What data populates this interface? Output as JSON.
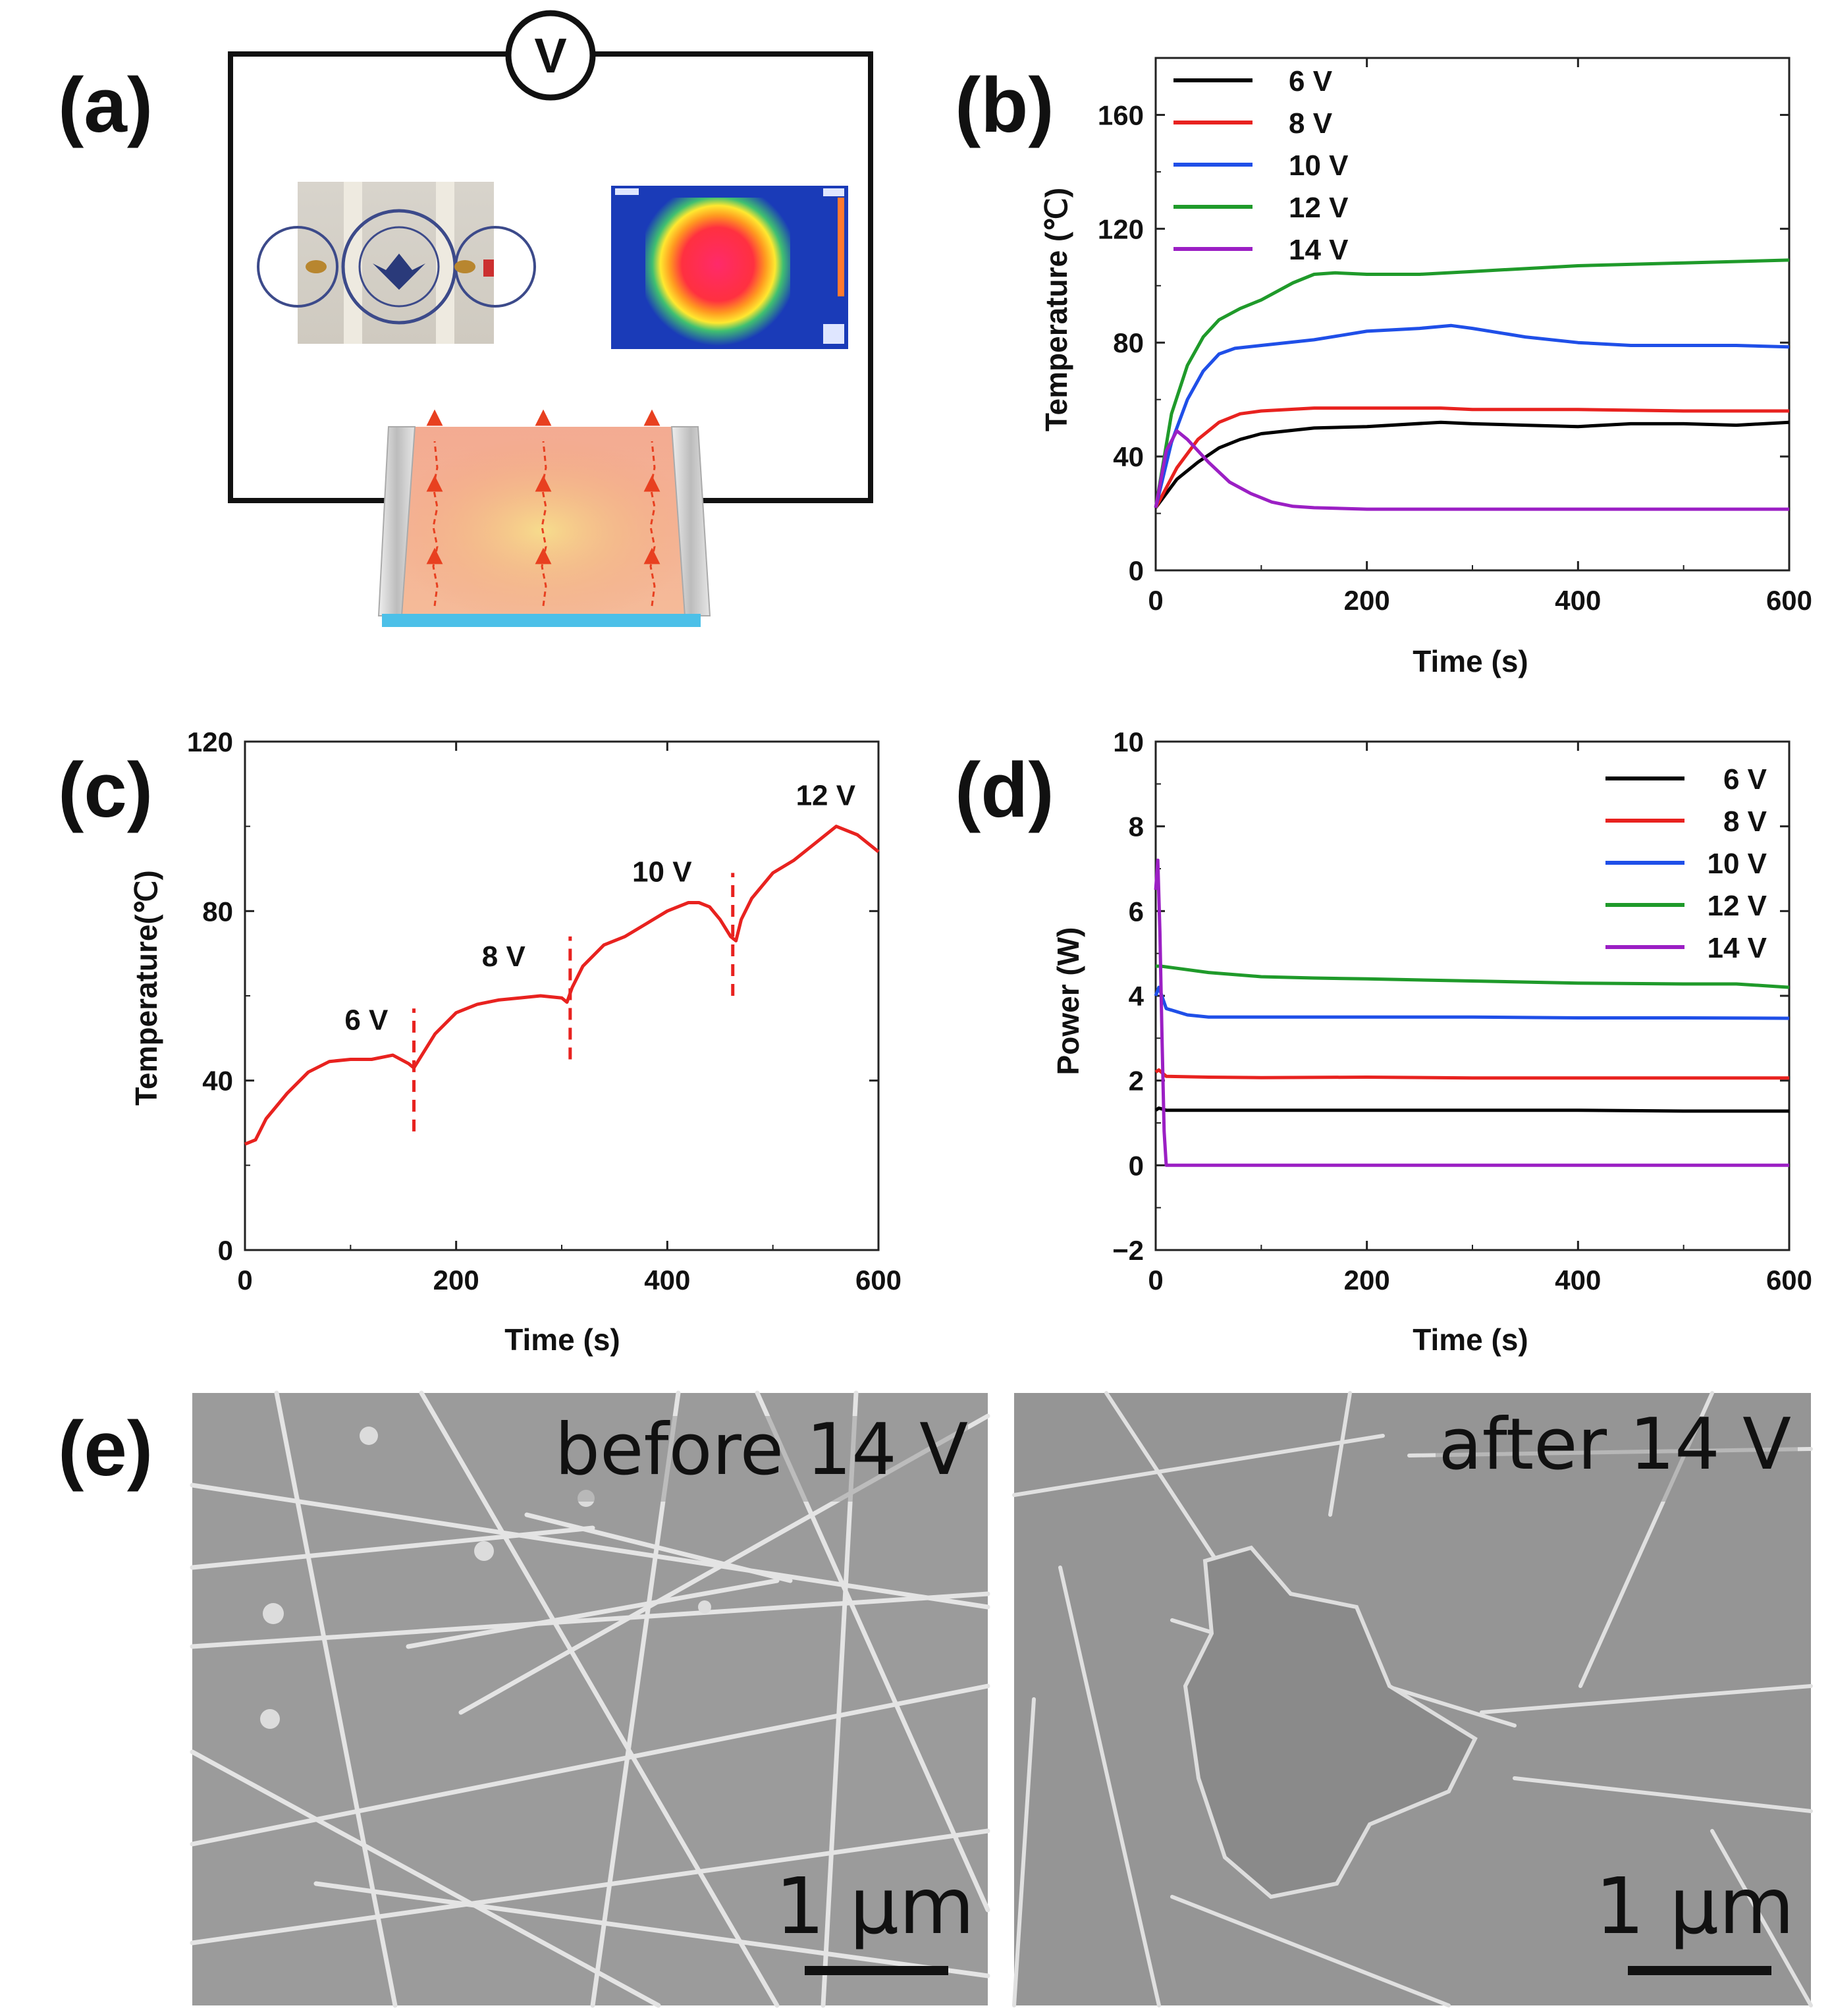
{
  "panels": {
    "a": {
      "label": "(a)",
      "voltmeter": "V"
    },
    "b": {
      "label": "(b)"
    },
    "c": {
      "label": "(c)"
    },
    "d": {
      "label": "(d)"
    },
    "e": {
      "label": "(e)",
      "left_caption": "before 14 V",
      "right_caption": "after 14 V",
      "scale_label": "1 μm"
    }
  },
  "colors": {
    "6 V": "#000000",
    "8 V": "#e8221f",
    "10 V": "#1f4fe8",
    "12 V": "#1f9a2a",
    "14 V": "#9b1fc4"
  },
  "chart_data": [
    {
      "id": "b",
      "type": "line",
      "xlabel": "Time (s)",
      "ylabel": "Temperature (℃)",
      "xlim": [
        0,
        600
      ],
      "ylim": [
        0,
        180
      ],
      "xticks": [
        0,
        200,
        400,
        600
      ],
      "yticks": [
        0,
        40,
        80,
        120,
        160
      ],
      "legend_position": "top-left",
      "series": [
        {
          "name": "6 V",
          "x": [
            0,
            20,
            40,
            60,
            80,
            100,
            150,
            200,
            270,
            300,
            350,
            400,
            450,
            500,
            550,
            600
          ],
          "y": [
            22,
            32,
            38,
            43,
            46,
            48,
            50,
            50.5,
            52,
            51.5,
            51,
            50.5,
            51.5,
            51.5,
            51,
            52
          ]
        },
        {
          "name": "8 V",
          "x": [
            0,
            20,
            40,
            60,
            80,
            100,
            150,
            200,
            270,
            300,
            400,
            500,
            600
          ],
          "y": [
            22,
            36,
            46,
            52,
            55,
            56,
            57,
            57,
            57,
            56.5,
            56.5,
            56,
            56
          ]
        },
        {
          "name": "10 V",
          "x": [
            0,
            15,
            30,
            45,
            60,
            75,
            100,
            150,
            200,
            250,
            280,
            300,
            350,
            400,
            450,
            500,
            550,
            600
          ],
          "y": [
            22,
            45,
            60,
            70,
            76,
            78,
            79,
            81,
            84,
            85,
            86,
            85,
            82,
            80,
            79,
            79,
            79,
            78.5
          ]
        },
        {
          "name": "12 V",
          "x": [
            0,
            15,
            30,
            45,
            60,
            80,
            100,
            130,
            150,
            170,
            200,
            250,
            300,
            400,
            500,
            600
          ],
          "y": [
            22,
            55,
            72,
            82,
            88,
            92,
            95,
            101,
            104,
            104.5,
            104,
            104,
            105,
            107,
            108,
            109
          ]
        },
        {
          "name": "14 V",
          "x": [
            0,
            10,
            20,
            30,
            50,
            70,
            90,
            110,
            130,
            150,
            200,
            300,
            400,
            500,
            600
          ],
          "y": [
            22,
            42,
            49,
            46,
            38,
            31,
            27,
            24,
            22.5,
            22,
            21.5,
            21.5,
            21.5,
            21.5,
            21.5
          ]
        }
      ]
    },
    {
      "id": "c",
      "type": "line",
      "xlabel": "Time (s)",
      "ylabel": "Temperature(℃)",
      "xlim": [
        0,
        600
      ],
      "ylim": [
        0,
        120
      ],
      "xticks": [
        0,
        200,
        400,
        600
      ],
      "yticks": [
        0,
        40,
        80,
        120
      ],
      "series": [
        {
          "name": "temperature",
          "color": "#e8221f",
          "x": [
            0,
            10,
            20,
            40,
            60,
            80,
            100,
            120,
            140,
            155,
            160,
            170,
            180,
            200,
            220,
            240,
            260,
            280,
            300,
            305,
            310,
            320,
            340,
            360,
            380,
            400,
            420,
            430,
            440,
            450,
            460,
            465,
            470,
            480,
            500,
            520,
            540,
            560,
            580,
            595,
            600
          ],
          "y": [
            25,
            26,
            31,
            37,
            42,
            44.5,
            45,
            45,
            46,
            44,
            43,
            47,
            51,
            56,
            58,
            59,
            59.5,
            60,
            59.5,
            58.5,
            62,
            67,
            72,
            74,
            77,
            80,
            82,
            82,
            81,
            78,
            74,
            73,
            78,
            83,
            89,
            92,
            96,
            100,
            98,
            95,
            94
          ]
        }
      ],
      "dividers": [
        {
          "x": 160,
          "y_range": [
            28,
            57
          ]
        },
        {
          "x": 308,
          "y_range": [
            45,
            74
          ]
        },
        {
          "x": 462,
          "y_range": [
            60,
            89
          ]
        }
      ],
      "annotations": [
        {
          "text": "6 V",
          "x": 115,
          "y": 52
        },
        {
          "text": "8 V",
          "x": 245,
          "y": 67
        },
        {
          "text": "10 V",
          "x": 395,
          "y": 87
        },
        {
          "text": "12 V",
          "x": 550,
          "y": 105
        }
      ]
    },
    {
      "id": "d",
      "type": "line",
      "xlabel": "Time (s)",
      "ylabel": "Power (W)",
      "xlim": [
        0,
        600
      ],
      "ylim": [
        -2,
        10
      ],
      "xticks": [
        0,
        200,
        400,
        600
      ],
      "yticks": [
        -2,
        0,
        2,
        4,
        6,
        8,
        10
      ],
      "legend_position": "top-right",
      "series": [
        {
          "name": "6 V",
          "x": [
            0,
            3,
            10,
            50,
            100,
            200,
            300,
            400,
            500,
            600
          ],
          "y": [
            1.3,
            1.35,
            1.3,
            1.3,
            1.3,
            1.3,
            1.3,
            1.3,
            1.28,
            1.28
          ]
        },
        {
          "name": "8 V",
          "x": [
            0,
            3,
            10,
            50,
            100,
            200,
            300,
            400,
            500,
            600
          ],
          "y": [
            2.2,
            2.25,
            2.1,
            2.08,
            2.07,
            2.08,
            2.06,
            2.06,
            2.06,
            2.06
          ]
        },
        {
          "name": "10 V",
          "x": [
            0,
            3,
            10,
            30,
            50,
            100,
            200,
            300,
            400,
            500,
            600
          ],
          "y": [
            4.0,
            4.2,
            3.7,
            3.55,
            3.5,
            3.5,
            3.5,
            3.5,
            3.48,
            3.48,
            3.47
          ]
        },
        {
          "name": "12 V",
          "x": [
            0,
            5,
            20,
            50,
            100,
            150,
            200,
            300,
            400,
            500,
            550,
            600
          ],
          "y": [
            4.7,
            4.7,
            4.65,
            4.55,
            4.45,
            4.42,
            4.4,
            4.35,
            4.3,
            4.28,
            4.28,
            4.2
          ]
        },
        {
          "name": "14 V",
          "x": [
            0,
            2,
            4,
            6,
            8,
            10,
            20,
            100,
            200,
            300,
            400,
            500,
            600
          ],
          "y": [
            6.5,
            7.2,
            5.5,
            3.0,
            0.8,
            0.0,
            0.0,
            0.0,
            0.0,
            0.0,
            0.0,
            0.0,
            0.0
          ]
        }
      ]
    }
  ]
}
